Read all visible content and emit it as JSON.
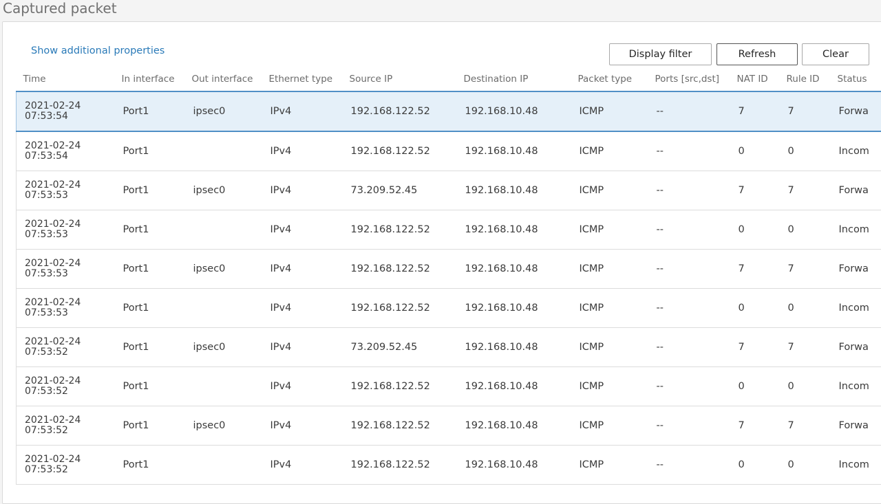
{
  "page": {
    "title": "Captured packet"
  },
  "toolbar": {
    "show_additional_properties": "Show additional properties",
    "display_filter_label": "Display filter",
    "refresh_label": "Refresh",
    "clear_label": "Clear"
  },
  "table": {
    "columns": [
      "Time",
      "In interface",
      "Out interface",
      "Ethernet type",
      "Source IP",
      "Destination IP",
      "Packet type",
      "Ports [src,dst]",
      "NAT ID",
      "Rule ID",
      "Status"
    ],
    "rows": [
      {
        "date": "2021-02-24",
        "clock": "07:53:54",
        "in_if": "Port1",
        "out_if": "ipsec0",
        "eth": "IPv4",
        "src": "192.168.122.52",
        "dst": "192.168.10.48",
        "ptype": "ICMP",
        "ports": "--",
        "nat": "7",
        "rule": "7",
        "status": "Forwa",
        "selected": true
      },
      {
        "date": "2021-02-24",
        "clock": "07:53:54",
        "in_if": "Port1",
        "out_if": "",
        "eth": "IPv4",
        "src": "192.168.122.52",
        "dst": "192.168.10.48",
        "ptype": "ICMP",
        "ports": "--",
        "nat": "0",
        "rule": "0",
        "status": "Incom",
        "selected": false
      },
      {
        "date": "2021-02-24",
        "clock": "07:53:53",
        "in_if": "Port1",
        "out_if": "ipsec0",
        "eth": "IPv4",
        "src": "73.209.52.45",
        "dst": "192.168.10.48",
        "ptype": "ICMP",
        "ports": "--",
        "nat": "7",
        "rule": "7",
        "status": "Forwa",
        "selected": false
      },
      {
        "date": "2021-02-24",
        "clock": "07:53:53",
        "in_if": "Port1",
        "out_if": "",
        "eth": "IPv4",
        "src": "192.168.122.52",
        "dst": "192.168.10.48",
        "ptype": "ICMP",
        "ports": "--",
        "nat": "0",
        "rule": "0",
        "status": "Incom",
        "selected": false
      },
      {
        "date": "2021-02-24",
        "clock": "07:53:53",
        "in_if": "Port1",
        "out_if": "ipsec0",
        "eth": "IPv4",
        "src": "192.168.122.52",
        "dst": "192.168.10.48",
        "ptype": "ICMP",
        "ports": "--",
        "nat": "7",
        "rule": "7",
        "status": "Forwa",
        "selected": false
      },
      {
        "date": "2021-02-24",
        "clock": "07:53:53",
        "in_if": "Port1",
        "out_if": "",
        "eth": "IPv4",
        "src": "192.168.122.52",
        "dst": "192.168.10.48",
        "ptype": "ICMP",
        "ports": "--",
        "nat": "0",
        "rule": "0",
        "status": "Incom",
        "selected": false
      },
      {
        "date": "2021-02-24",
        "clock": "07:53:52",
        "in_if": "Port1",
        "out_if": "ipsec0",
        "eth": "IPv4",
        "src": "73.209.52.45",
        "dst": "192.168.10.48",
        "ptype": "ICMP",
        "ports": "--",
        "nat": "7",
        "rule": "7",
        "status": "Forwa",
        "selected": false
      },
      {
        "date": "2021-02-24",
        "clock": "07:53:52",
        "in_if": "Port1",
        "out_if": "",
        "eth": "IPv4",
        "src": "192.168.122.52",
        "dst": "192.168.10.48",
        "ptype": "ICMP",
        "ports": "--",
        "nat": "0",
        "rule": "0",
        "status": "Incom",
        "selected": false
      },
      {
        "date": "2021-02-24",
        "clock": "07:53:52",
        "in_if": "Port1",
        "out_if": "ipsec0",
        "eth": "IPv4",
        "src": "192.168.122.52",
        "dst": "192.168.10.48",
        "ptype": "ICMP",
        "ports": "--",
        "nat": "7",
        "rule": "7",
        "status": "Forwa",
        "selected": false
      },
      {
        "date": "2021-02-24",
        "clock": "07:53:52",
        "in_if": "Port1",
        "out_if": "",
        "eth": "IPv4",
        "src": "192.168.122.52",
        "dst": "192.168.10.48",
        "ptype": "ICMP",
        "ports": "--",
        "nat": "0",
        "rule": "0",
        "status": "Incom",
        "selected": false
      }
    ]
  },
  "colors": {
    "accent": "#2a7ab8",
    "selected_row_bg": "#e5f0f9",
    "header_rule": "#4f8fc6"
  }
}
